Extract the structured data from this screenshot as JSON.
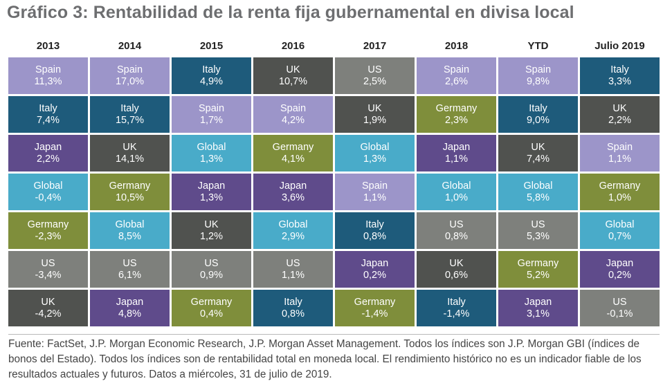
{
  "title": "Gráfico 3: Rentabilidad de la renta fija gubernamental en divisa local",
  "footnote": "Fuente: FactSet, J.P. Morgan Economic Research, J.P. Morgan Asset Management. Todos los índices son J.P. Morgan GBI (índices de bonos del Estado). Todos los índices son de rentabilidad total en moneda local. El rendimiento histórico no es un indicador fiable de los resultados actuales y futuros. Datos a miércoles, 31 de julio de 2019.",
  "colors": {
    "Spain": "#9c95c9",
    "Italy": "#1e5b7b",
    "UK": "#50524f",
    "US": "#7e807c",
    "Germany": "#7f8e3b",
    "Global": "#49abc9",
    "Japan": "#5f4b8b"
  },
  "chart_data": {
    "type": "table",
    "title": "Gráfico 3: Rentabilidad de la renta fija gubernamental en divisa local",
    "columns": [
      {
        "header": "2013",
        "cells": [
          {
            "country": "Spain",
            "value": "11,3%"
          },
          {
            "country": "Italy",
            "value": "7,4%"
          },
          {
            "country": "Japan",
            "value": "2,2%"
          },
          {
            "country": "Global",
            "value": "-0,4%"
          },
          {
            "country": "Germany",
            "value": "-2,3%"
          },
          {
            "country": "US",
            "value": "-3,4%"
          },
          {
            "country": "UK",
            "value": "-4,2%"
          }
        ]
      },
      {
        "header": "2014",
        "cells": [
          {
            "country": "Spain",
            "value": "17,0%"
          },
          {
            "country": "Italy",
            "value": "15,7%"
          },
          {
            "country": "UK",
            "value": "14,1%"
          },
          {
            "country": "Germany",
            "value": "10,5%"
          },
          {
            "country": "Global",
            "value": "8,5%"
          },
          {
            "country": "US",
            "value": "6,1%"
          },
          {
            "country": "Japan",
            "value": "4,8%"
          }
        ]
      },
      {
        "header": "2015",
        "cells": [
          {
            "country": "Italy",
            "value": "4,9%"
          },
          {
            "country": "Spain",
            "value": "1,7%"
          },
          {
            "country": "Global",
            "value": "1,3%"
          },
          {
            "country": "Japan",
            "value": "1,3%"
          },
          {
            "country": "UK",
            "value": "1,2%"
          },
          {
            "country": "US",
            "value": "0,9%"
          },
          {
            "country": "Germany",
            "value": "0,4%"
          }
        ]
      },
      {
        "header": "2016",
        "cells": [
          {
            "country": "UK",
            "value": "10,7%"
          },
          {
            "country": "Spain",
            "value": "4,2%"
          },
          {
            "country": "Germany",
            "value": "4,1%"
          },
          {
            "country": "Japan",
            "value": "3,6%"
          },
          {
            "country": "Global",
            "value": "2,9%"
          },
          {
            "country": "US",
            "value": "1,1%"
          },
          {
            "country": "Italy",
            "value": "0,8%"
          }
        ]
      },
      {
        "header": "2017",
        "cells": [
          {
            "country": "US",
            "value": "2,5%"
          },
          {
            "country": "UK",
            "value": "1,9%"
          },
          {
            "country": "Global",
            "value": "1,3%"
          },
          {
            "country": "Spain",
            "value": "1,1%"
          },
          {
            "country": "Italy",
            "value": "0,8%"
          },
          {
            "country": "Japan",
            "value": "0,2%"
          },
          {
            "country": "Germany",
            "value": "-1,4%"
          }
        ]
      },
      {
        "header": "2018",
        "cells": [
          {
            "country": "Spain",
            "value": "2,6%"
          },
          {
            "country": "Germany",
            "value": "2,3%"
          },
          {
            "country": "Japan",
            "value": "1,1%"
          },
          {
            "country": "Global",
            "value": "1,0%"
          },
          {
            "country": "US",
            "value": "0,8%"
          },
          {
            "country": "UK",
            "value": "0,6%"
          },
          {
            "country": "Italy",
            "value": "-1,4%"
          }
        ]
      },
      {
        "header": "YTD",
        "cells": [
          {
            "country": "Spain",
            "value": "9,8%"
          },
          {
            "country": "Italy",
            "value": "9,0%"
          },
          {
            "country": "UK",
            "value": "7,4%"
          },
          {
            "country": "Global",
            "value": "5,8%"
          },
          {
            "country": "US",
            "value": "5,3%"
          },
          {
            "country": "Germany",
            "value": "5,2%"
          },
          {
            "country": "Japan",
            "value": "3,1%"
          }
        ]
      },
      {
        "header": "Julio 2019",
        "cells": [
          {
            "country": "Italy",
            "value": "3,3%"
          },
          {
            "country": "UK",
            "value": "2,2%"
          },
          {
            "country": "Spain",
            "value": "1,1%"
          },
          {
            "country": "Germany",
            "value": "1,0%"
          },
          {
            "country": "Global",
            "value": "0,7%"
          },
          {
            "country": "Japan",
            "value": "0,2%"
          },
          {
            "country": "US",
            "value": "-0,1%"
          }
        ]
      }
    ]
  }
}
